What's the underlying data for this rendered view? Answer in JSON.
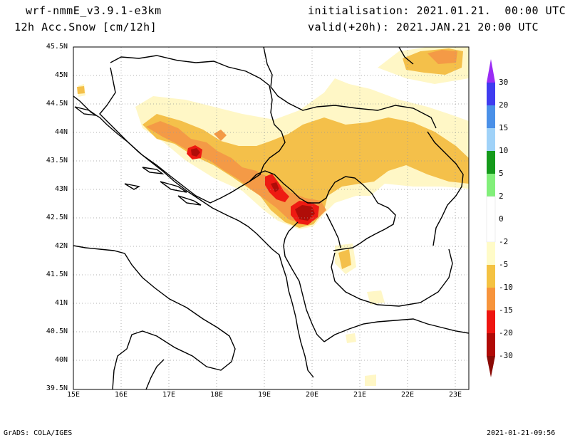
{
  "header": {
    "model": "wrf-nmmE_v3.9.1-e3km",
    "field": "12h Acc.Snow [cm/12h]",
    "init": "initialisation: 2021.01.21.  00:00 UTC",
    "valid": "valid(+20h): 2021.JAN.21 20:00 UTC"
  },
  "footer": {
    "left": "GrADS: COLA/IGES",
    "right": "2021-01-21-09:56"
  },
  "axes": {
    "lat_labels": [
      "45.5N",
      "45N",
      "44.5N",
      "44N",
      "43.5N",
      "43N",
      "42.5N",
      "42N",
      "41.5N",
      "41N",
      "40.5N",
      "40N",
      "39.5N"
    ],
    "lon_labels": [
      "15E",
      "16E",
      "17E",
      "18E",
      "19E",
      "20E",
      "21E",
      "22E",
      "23E"
    ]
  },
  "colorbar": {
    "labels": [
      "30",
      "20",
      "15",
      "10",
      "5",
      "2",
      "0",
      "-2",
      "-5",
      "-10",
      "-15",
      "-20",
      "-30"
    ],
    "colors": [
      "#9a2bf5",
      "#3f3cf0",
      "#4a90e8",
      "#a0d2f8",
      "#159a1b",
      "#82ef7a",
      "#ffffff",
      "#fffbc8",
      "#f4c242",
      "#f7943c",
      "#ee1510",
      "#b00a06"
    ]
  },
  "colors": {
    "snow_light": "#fff7c6",
    "snow_mod": "#f4c04a",
    "snow_heavy": "#f49a46",
    "snow_very_heavy": "#ee1a12",
    "snow_extreme": "#b00d08"
  }
}
